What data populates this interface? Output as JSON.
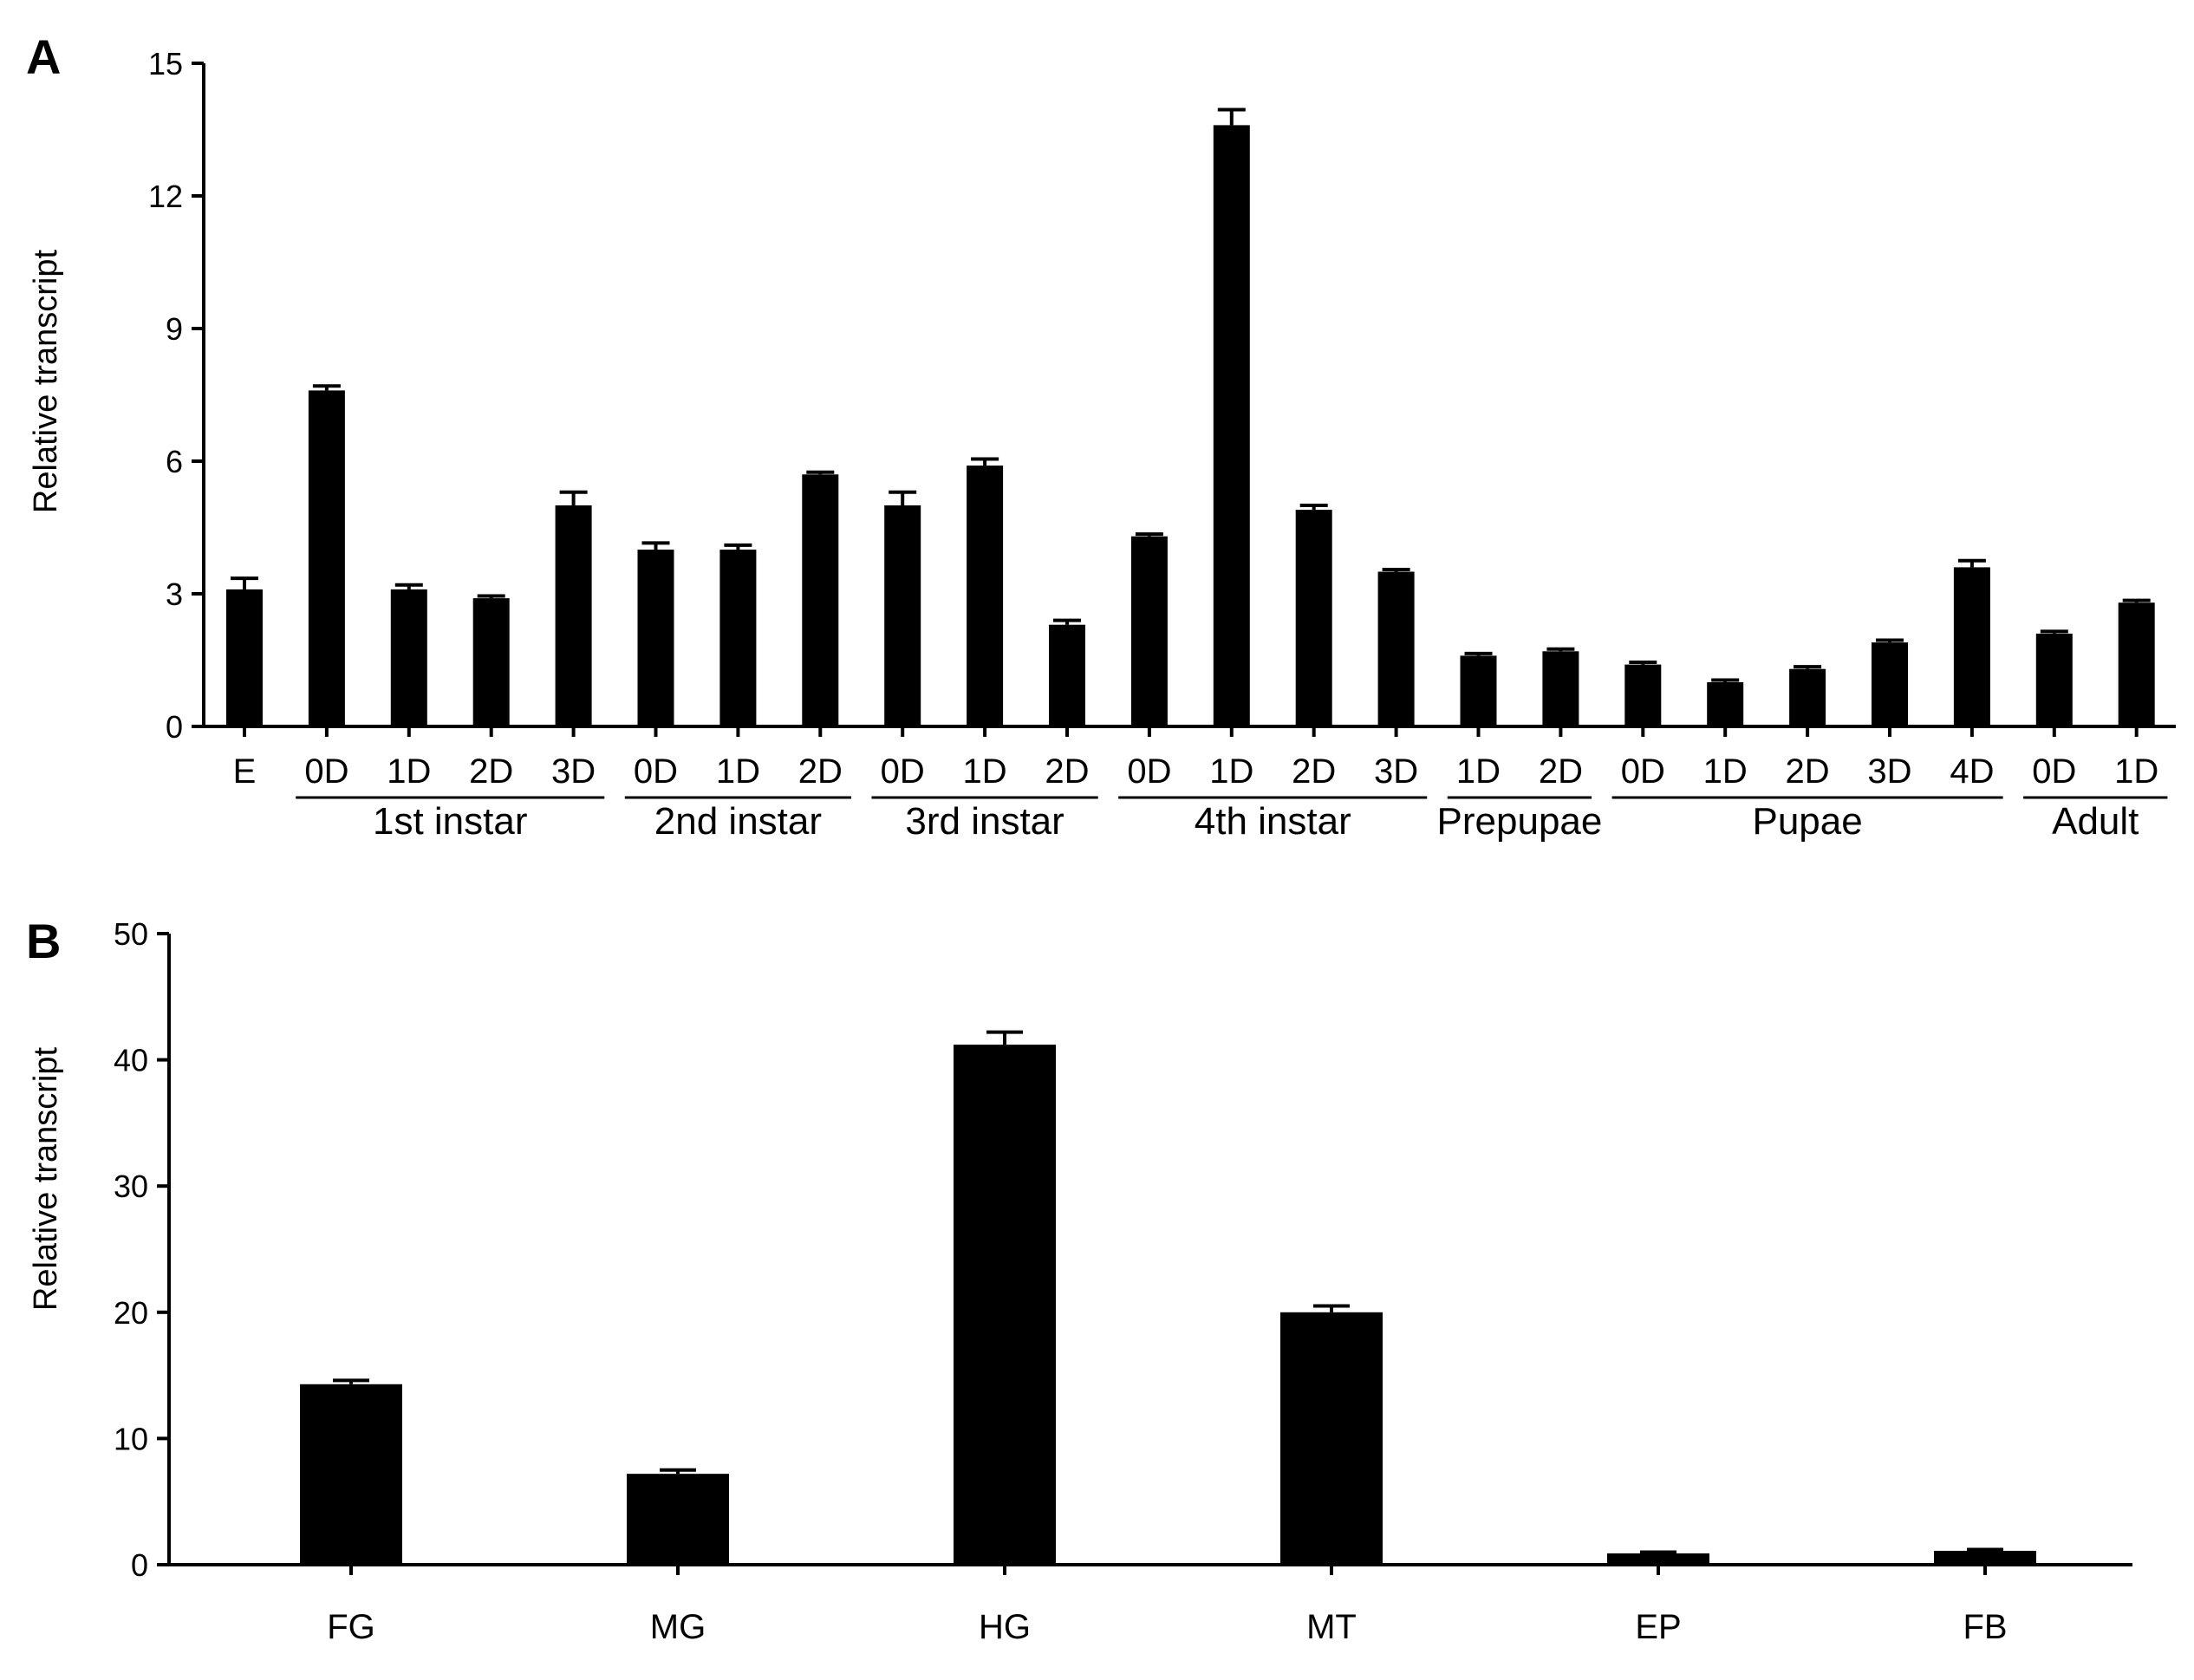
{
  "chart_data": [
    {
      "panel": "A",
      "type": "bar",
      "ylabel": "Relative transcript",
      "ylim": [
        0,
        15
      ],
      "yticks": [
        "0",
        "3",
        "6",
        "9",
        "12",
        "15"
      ],
      "categories": [
        "E",
        "0D",
        "1D",
        "2D",
        "3D",
        "0D",
        "1D",
        "2D",
        "0D",
        "1D",
        "2D",
        "0D",
        "1D",
        "2D",
        "3D",
        "1D",
        "2D",
        "0D",
        "1D",
        "2D",
        "3D",
        "4D",
        "0D",
        "1D"
      ],
      "values": [
        3.1,
        7.6,
        3.1,
        2.9,
        5.0,
        4.0,
        4.0,
        5.7,
        5.0,
        5.9,
        2.3,
        4.3,
        13.6,
        4.9,
        3.5,
        1.6,
        1.7,
        1.4,
        1.0,
        1.3,
        1.9,
        3.6,
        2.1,
        2.8
      ],
      "errors": [
        0.25,
        0.1,
        0.1,
        0.05,
        0.3,
        0.15,
        0.1,
        0.05,
        0.3,
        0.15,
        0.1,
        0.05,
        0.35,
        0.1,
        0.05,
        0.05,
        0.05,
        0.05,
        0.05,
        0.05,
        0.05,
        0.15,
        0.05,
        0.05
      ],
      "groups": [
        {
          "label": "1st instar",
          "start": 1,
          "end": 4
        },
        {
          "label": "2nd instar",
          "start": 5,
          "end": 7
        },
        {
          "label": "3rd instar",
          "start": 8,
          "end": 10
        },
        {
          "label": "4th instar",
          "start": 11,
          "end": 14
        },
        {
          "label": "Prepupae",
          "start": 15,
          "end": 16
        },
        {
          "label": "Pupae",
          "start": 17,
          "end": 21
        },
        {
          "label": "Adult",
          "start": 22,
          "end": 23
        }
      ]
    },
    {
      "panel": "B",
      "type": "bar",
      "ylabel": "Relative transcript",
      "ylim": [
        0,
        50
      ],
      "yticks": [
        "0",
        "10",
        "20",
        "30",
        "40",
        "50"
      ],
      "categories": [
        "FG",
        "MG",
        "HG",
        "MT",
        "EP",
        "FB"
      ],
      "values": [
        14.3,
        7.2,
        41.2,
        20.0,
        0.9,
        1.1
      ],
      "errors": [
        0.3,
        0.3,
        1.0,
        0.5,
        0.1,
        0.1
      ]
    }
  ]
}
